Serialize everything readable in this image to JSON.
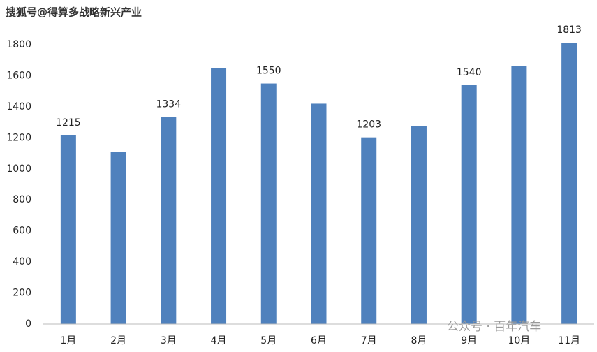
{
  "chart_data": {
    "type": "bar",
    "categories": [
      "1月",
      "2月",
      "3月",
      "4月",
      "5月",
      "6月",
      "7月",
      "8月",
      "9月",
      "10月",
      "11月"
    ],
    "values": [
      1215,
      1110,
      1334,
      1650,
      1550,
      1420,
      1203,
      1275,
      1540,
      1665,
      1813
    ],
    "value_labels": [
      "1215",
      null,
      "1334",
      null,
      "1550",
      null,
      "1203",
      null,
      "1540",
      null,
      "1813"
    ],
    "color": "#4f81bd",
    "ylim": [
      0,
      1800
    ],
    "yticks": [
      0,
      200,
      400,
      600,
      800,
      1000,
      1200,
      1400,
      1600,
      1800
    ],
    "grid": false
  },
  "watermarks": [
    "搜狐号@得算多战略新兴产业",
    "公众号 · 百年汽车"
  ]
}
